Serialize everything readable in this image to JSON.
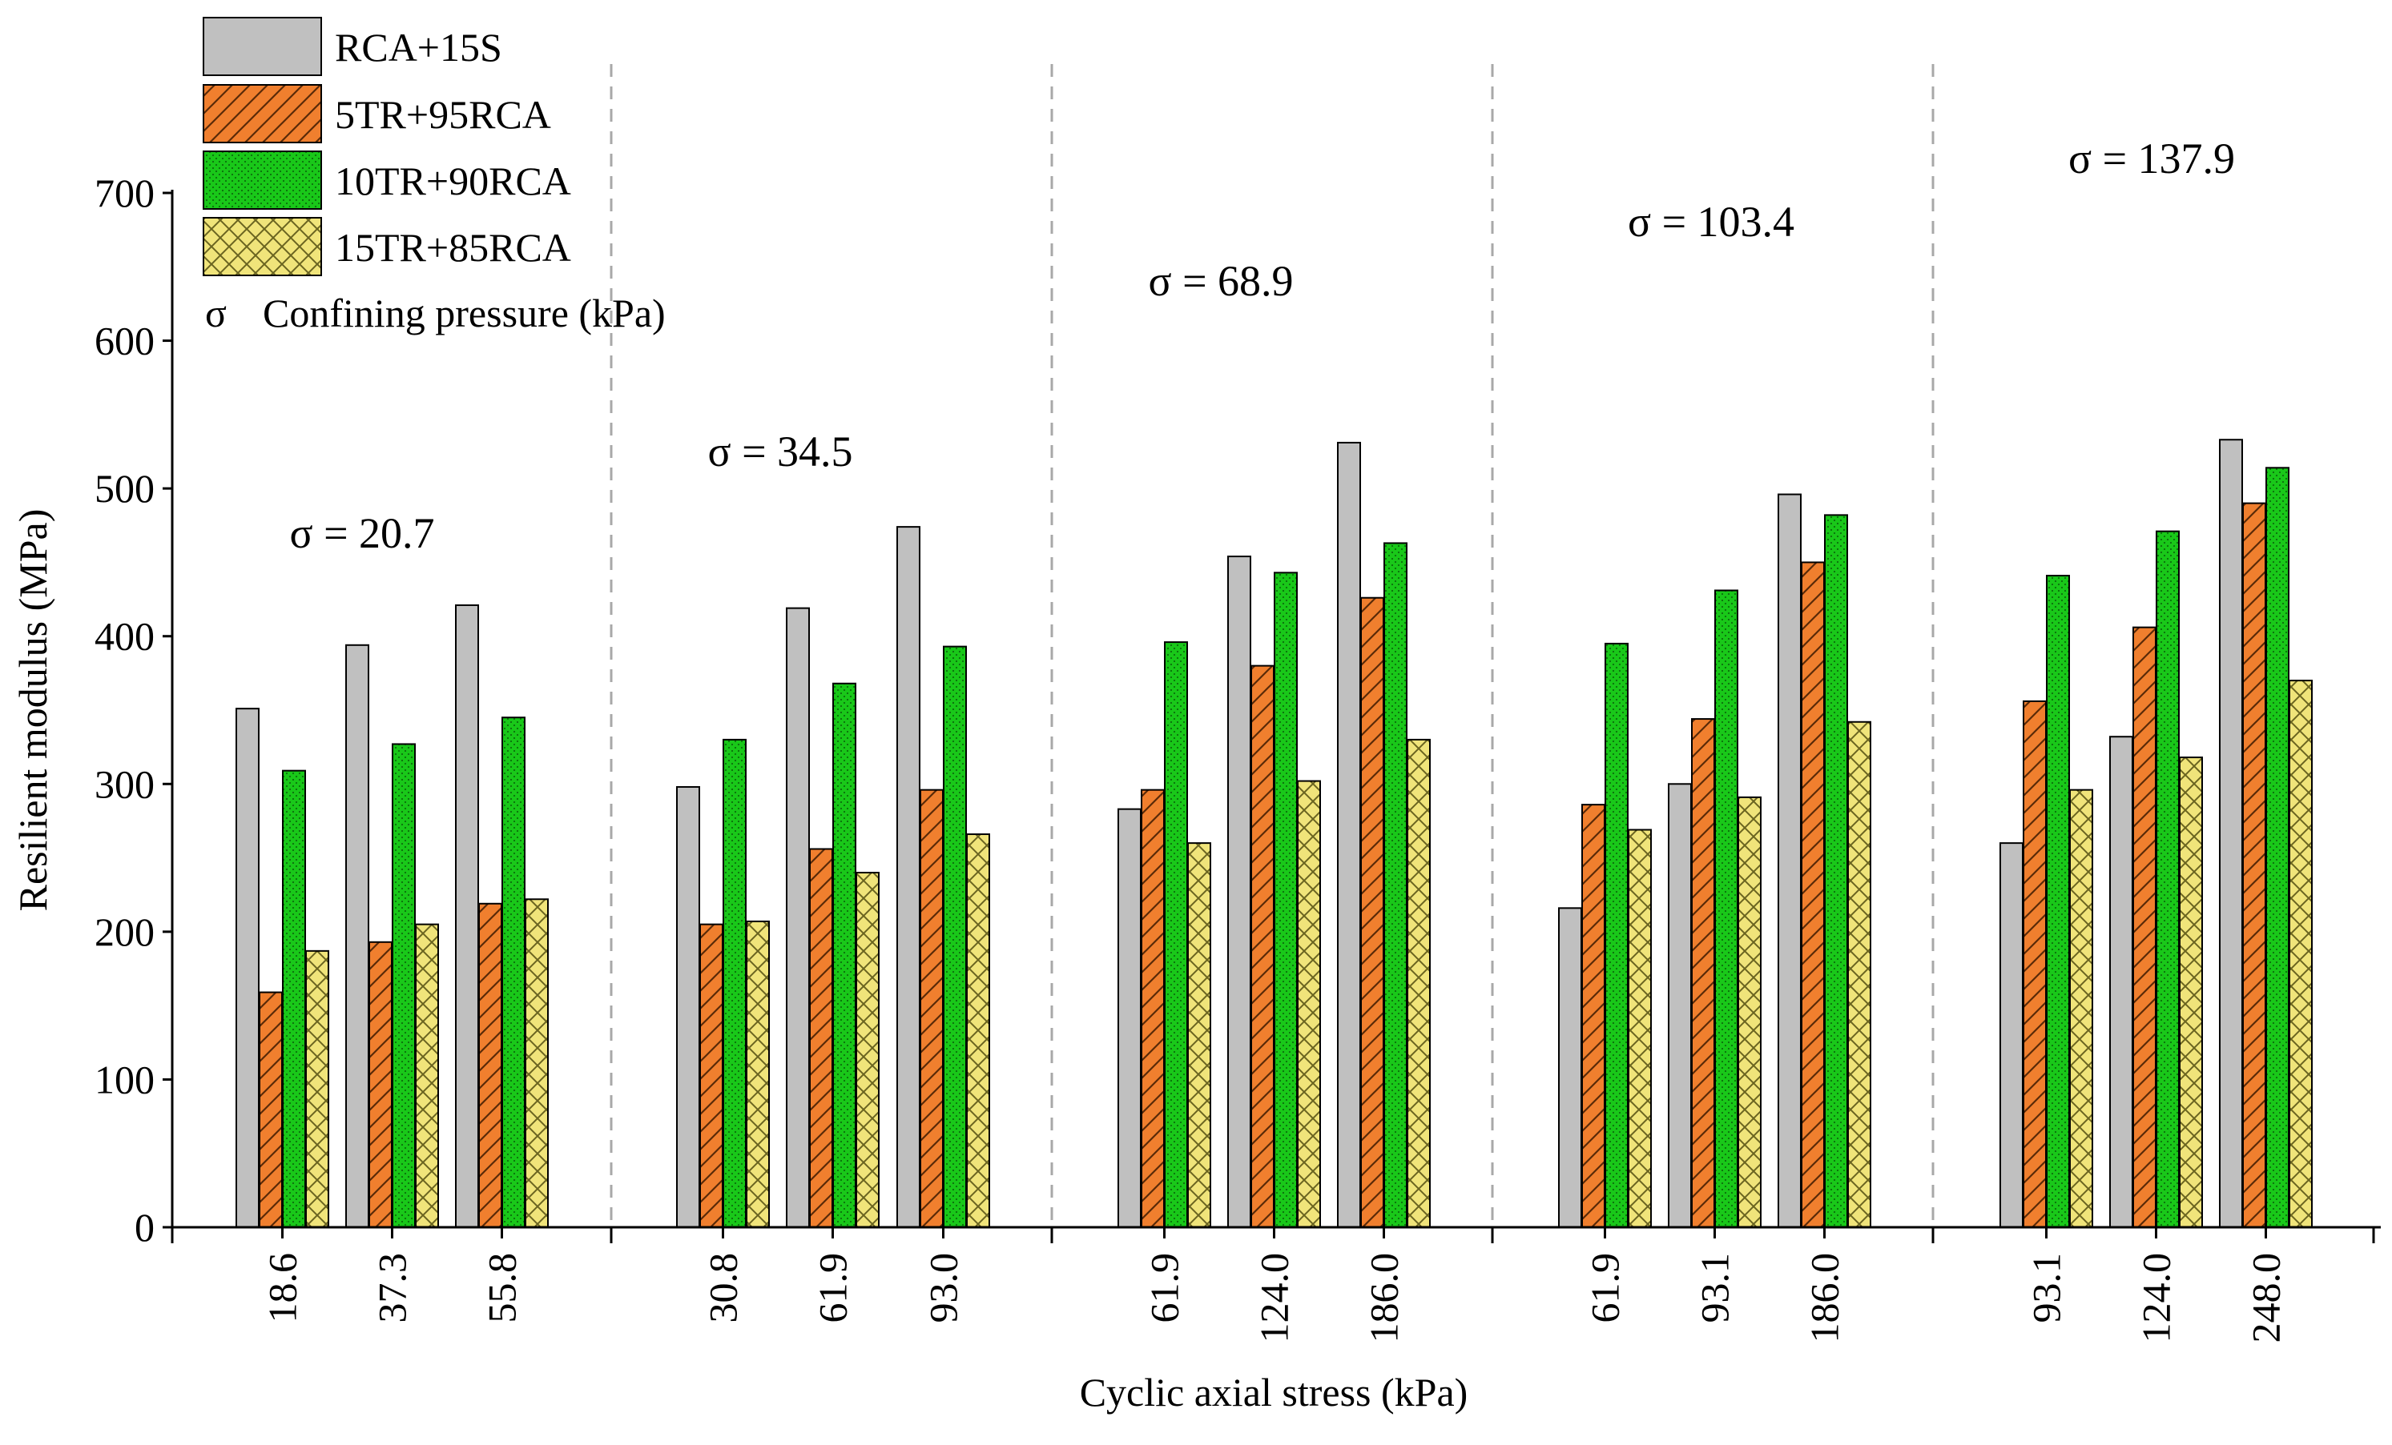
{
  "chart_data": {
    "type": "bar",
    "xlabel": "Cyclic axial stress (kPa)",
    "ylabel": "Resilient modulus (MPa)",
    "ylim": [
      0,
      700
    ],
    "yticks": [
      0,
      100,
      200,
      300,
      400,
      500,
      600,
      700
    ],
    "grid": false,
    "legend_position": "top-left",
    "legend_note": {
      "symbol": "σ",
      "label": "Confining pressure (kPa)"
    },
    "categories": [
      "18.6",
      "37.3",
      "55.8",
      "30.8",
      "61.9",
      "93.0",
      "61.9",
      "124.0",
      "186.0",
      "61.9",
      "93.1",
      "186.0",
      "93.1",
      "124.0",
      "248.0"
    ],
    "groups": [
      {
        "label": "σ = 20.7",
        "size": 3
      },
      {
        "label": "σ = 34.5",
        "size": 3
      },
      {
        "label": "σ = 68.9",
        "size": 3
      },
      {
        "label": "σ = 103.4",
        "size": 3
      },
      {
        "label": "σ = 137.9",
        "size": 3
      }
    ],
    "series": [
      {
        "name": "RCA+15S",
        "color": "#c0c0c0",
        "pattern": "solid",
        "values": [
          351,
          394,
          421,
          298,
          419,
          474,
          283,
          454,
          531,
          216,
          300,
          496,
          260,
          332,
          533
        ]
      },
      {
        "name": "5TR+95RCA",
        "color": "#f07f2e",
        "pattern": "hatch",
        "values": [
          159,
          193,
          219,
          205,
          256,
          296,
          296,
          380,
          426,
          286,
          344,
          450,
          356,
          406,
          490
        ]
      },
      {
        "name": "10TR+90RCA",
        "color": "#19c819",
        "pattern": "dots",
        "values": [
          309,
          327,
          345,
          330,
          368,
          393,
          396,
          443,
          463,
          395,
          431,
          482,
          441,
          471,
          514
        ]
      },
      {
        "name": "15TR+85RCA",
        "color": "#f0e47a",
        "pattern": "crosshatch",
        "values": [
          187,
          205,
          222,
          207,
          240,
          266,
          260,
          302,
          330,
          269,
          291,
          342,
          296,
          318,
          370
        ]
      }
    ]
  }
}
